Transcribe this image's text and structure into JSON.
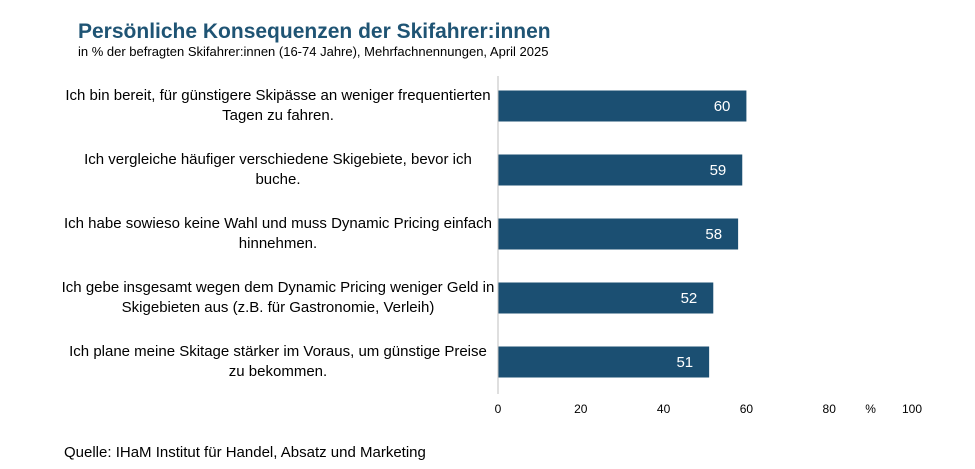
{
  "chart_data": {
    "type": "bar",
    "orientation": "horizontal",
    "title": "Persönliche Konsequenzen der Skifahrer:innen",
    "subtitle": "in % der befragten Skifahrer:innen (16-74 Jahre), Mehrfachnennungen, April 2025",
    "categories": [
      "Ich bin bereit, für günstigere Skipässe an weniger frequentierten Tagen zu fahren.",
      "Ich vergleiche häufiger verschiedene Skigebiete, bevor ich buche.",
      "Ich habe sowieso keine Wahl und muss Dynamic Pricing einfach hinnehmen.",
      "Ich gebe insgesamt wegen dem Dynamic Pricing weniger Geld in Skigebieten aus (z.B. für Gastronomie, Verleih)",
      "Ich plane meine Skitage stärker im Voraus, um günstige Preise zu bekommen."
    ],
    "values": [
      60,
      59,
      58,
      52,
      51
    ],
    "color": "#1b4f72",
    "xlim": [
      0,
      100
    ],
    "xticks": [
      0,
      20,
      40,
      60,
      80,
      100
    ],
    "xlabel": "%",
    "source": "Quelle: IHaM Institut für Handel, Absatz und Marketing"
  }
}
